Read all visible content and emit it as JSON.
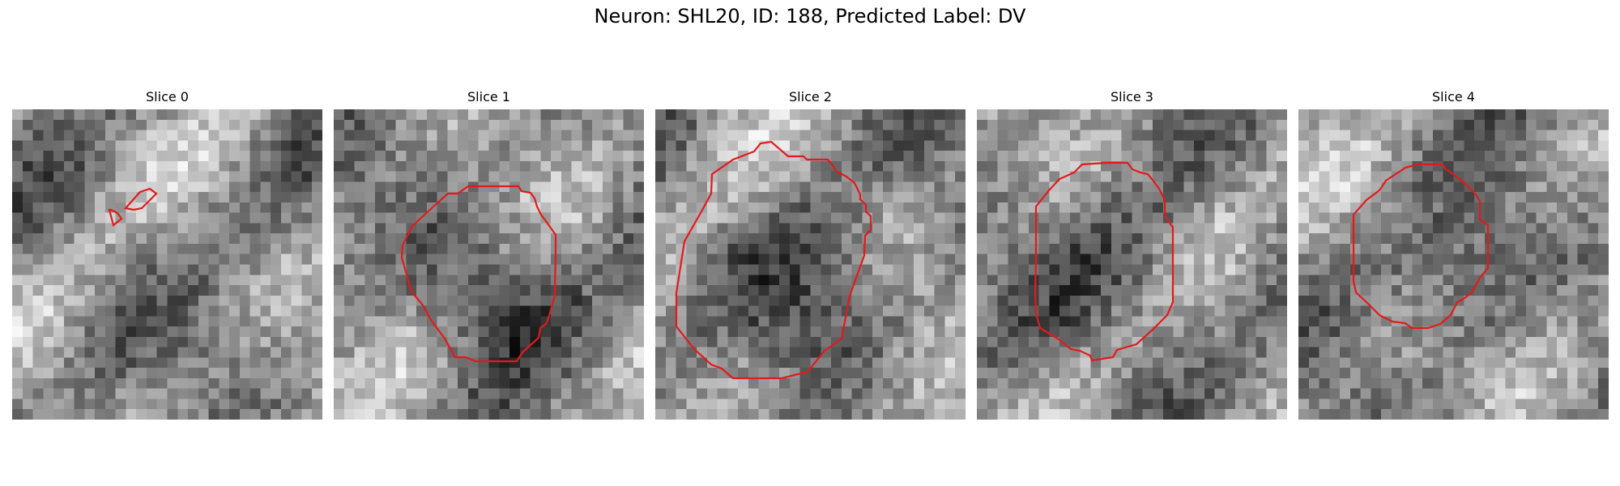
{
  "figure": {
    "title": "Neuron: SHL20, ID: 188, Predicted Label: DV"
  },
  "panels": [
    {
      "title": "Slice 0",
      "seed": 11,
      "contour": "small"
    },
    {
      "title": "Slice 1",
      "seed": 23,
      "contour": "large"
    },
    {
      "title": "Slice 2",
      "seed": 37,
      "contour": "large"
    },
    {
      "title": "Slice 3",
      "seed": 51,
      "contour": "large"
    },
    {
      "title": "Slice 4",
      "seed": 67,
      "contour": "medium"
    }
  ],
  "colors": {
    "contour": "#e31a1c",
    "background": "#ffffff"
  }
}
